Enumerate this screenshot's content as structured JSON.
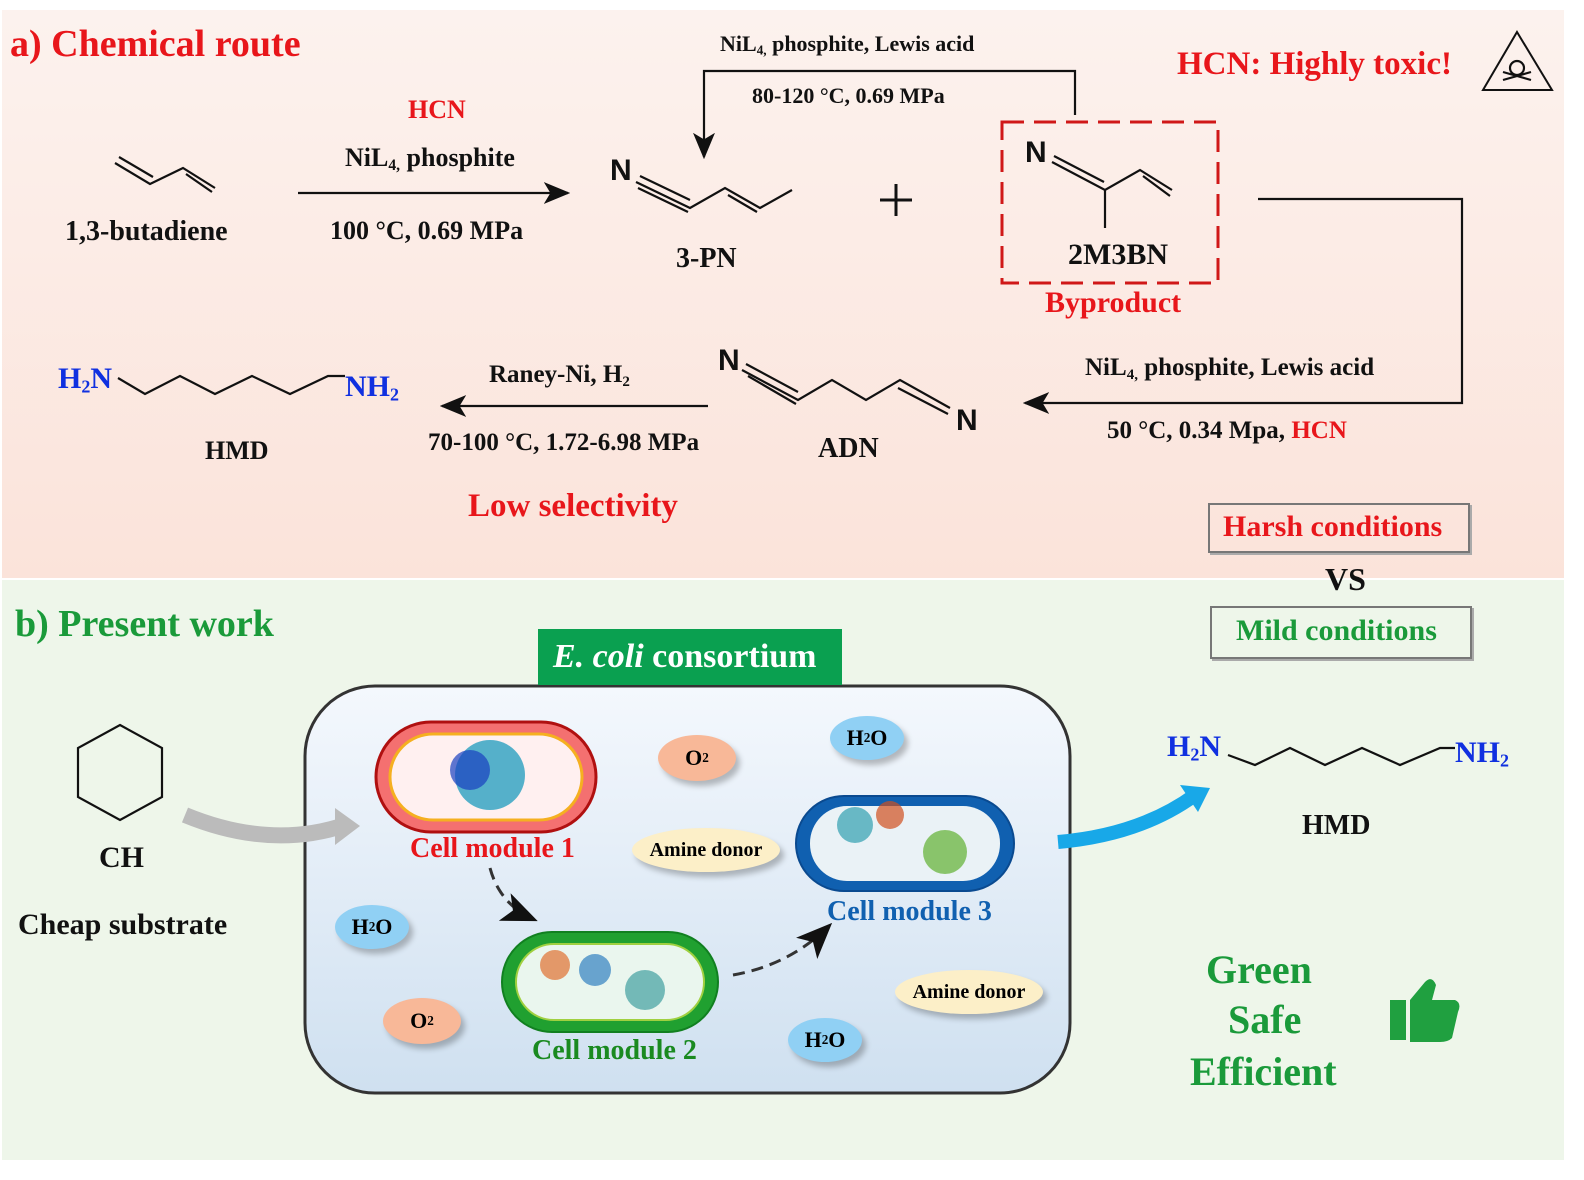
{
  "panel_a": {
    "title": "a) Chemical route",
    "step1": {
      "reagent": "HCN",
      "catalyst": "NiL",
      "catalyst_sub": "4,",
      "catalyst_rest": " phosphite",
      "conditions": "100 °C, 0.69 MPa"
    },
    "butadiene_label": "1,3-butadiene",
    "pn_label": "3-PN",
    "pn_atom": "N",
    "plus": "+",
    "byproduct": {
      "name": "2M3BN",
      "atom": "N",
      "label": "Byproduct"
    },
    "isomerization": {
      "catalyst": "NiL",
      "catalyst_sub": "4,",
      "catalyst_rest": " phosphite, Lewis acid",
      "conditions": "80-120 °C, 0.69 MPa"
    },
    "warning": {
      "text": "HCN: Highly toxic!",
      "icon": "skull-crossbones-warning-icon"
    },
    "step2": {
      "catalyst": "NiL",
      "catalyst_sub": "4,",
      "catalyst_rest": " phosphite, Lewis acid",
      "conditions": "50 °C, 0.34 Mpa, ",
      "reagent": "HCN"
    },
    "adn": {
      "label": "ADN",
      "atom1": "N",
      "atom2": "N"
    },
    "step3": {
      "reagent": "Raney-Ni, H",
      "reagent_sub": "2",
      "conditions": "70-100 °C, 1.72-6.98 MPa",
      "issue": "Low selectivity"
    },
    "hmd": {
      "left": "H",
      "left_sub": "2",
      "left_rest": "N",
      "right": "NH",
      "right_sub": "2",
      "label": "HMD"
    },
    "harsh": "Harsh conditions",
    "vs": "VS",
    "mild": "Mild conditions"
  },
  "panel_b": {
    "title": "b) Present work",
    "consortium": {
      "italic": "E. coli",
      "rest": " consortium"
    },
    "substrate": {
      "abbr": "CH",
      "desc": "Cheap substrate"
    },
    "cells": [
      "Cell module 1",
      "Cell module 2",
      "Cell module 3"
    ],
    "molecules": {
      "o2": "O",
      "o2_sub": "2",
      "h2o_h": "H",
      "h2o_sub": "2",
      "h2o_o": "O",
      "amine": "Amine donor"
    },
    "hmd": {
      "left": "H",
      "left_sub": "2",
      "left_rest": "N",
      "right": "NH",
      "right_sub": "2",
      "label": "HMD"
    },
    "benefits": [
      "Green",
      "Safe",
      "Efficient"
    ],
    "thumb_icon": "thumbs-up-icon"
  },
  "colors": {
    "red": "#e8161b",
    "green": "#1a9a3a",
    "blue": "#1030e0",
    "cell1": "#e03030",
    "cell2": "#22a030",
    "cell3": "#1060b0"
  }
}
